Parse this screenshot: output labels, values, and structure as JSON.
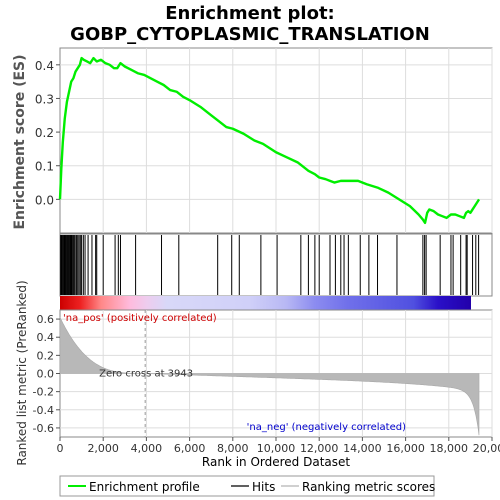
{
  "chart_data": {
    "type": "line",
    "title_line1": "Enrichment plot:",
    "title_line2": "GOBP_CYTOPLASMIC_TRANSLATION",
    "ylabel_top": "Enrichment score (ES)",
    "ylabel_bottom": "Ranked list metric (PreRanked)",
    "xlabel": "Rank in Ordered Dataset",
    "xlim": [
      0,
      20000
    ],
    "x_ticks": [
      "0",
      "2,000",
      "4,000",
      "6,000",
      "8,000",
      "10,000",
      "12,000",
      "14,000",
      "16,000",
      "18,000",
      "20,000"
    ],
    "x_tick_values": [
      0,
      2000,
      4000,
      6000,
      8000,
      10000,
      12000,
      14000,
      16000,
      18000,
      20000
    ],
    "es_ylim": [
      -0.1,
      0.45
    ],
    "es_ticks": [
      "0.0",
      "0.1",
      "0.2",
      "0.3",
      "0.4"
    ],
    "es_tick_values": [
      0.0,
      0.1,
      0.2,
      0.3,
      0.4
    ],
    "metric_ylim": [
      -0.7,
      0.7
    ],
    "metric_ticks": [
      "-0.6",
      "-0.4",
      "-0.2",
      "0.0",
      "0.2",
      "0.4",
      "0.6"
    ],
    "metric_tick_values": [
      -0.6,
      -0.4,
      -0.2,
      0.0,
      0.2,
      0.4,
      0.6
    ],
    "es_curve": {
      "x": [
        0,
        60,
        130,
        220,
        320,
        420,
        520,
        620,
        720,
        820,
        920,
        1000,
        1100,
        1250,
        1400,
        1550,
        1700,
        1900,
        2100,
        2300,
        2500,
        2650,
        2800,
        3000,
        3300,
        3600,
        3900,
        4200,
        4500,
        4800,
        5100,
        5400,
        5700,
        6000,
        6500,
        7000,
        7300,
        7700,
        8000,
        8500,
        9000,
        9400,
        10000,
        10500,
        11000,
        11200,
        11500,
        11800,
        12000,
        12300,
        12500,
        12700,
        13000,
        13300,
        13500,
        13800,
        14200,
        14700,
        15200,
        15700,
        16200,
        16600,
        16800,
        16900,
        17000,
        17100,
        17300,
        17500,
        17700,
        17900,
        18100,
        18300,
        18500,
        18700,
        18800,
        18900,
        19000,
        19100,
        19200,
        19300,
        19400
      ],
      "y": [
        0.0,
        0.09,
        0.17,
        0.24,
        0.29,
        0.32,
        0.35,
        0.36,
        0.38,
        0.39,
        0.4,
        0.42,
        0.415,
        0.41,
        0.405,
        0.42,
        0.41,
        0.415,
        0.405,
        0.4,
        0.39,
        0.39,
        0.405,
        0.395,
        0.385,
        0.375,
        0.37,
        0.36,
        0.35,
        0.34,
        0.325,
        0.32,
        0.305,
        0.295,
        0.275,
        0.25,
        0.235,
        0.215,
        0.21,
        0.195,
        0.175,
        0.165,
        0.14,
        0.125,
        0.11,
        0.1,
        0.085,
        0.075,
        0.065,
        0.06,
        0.055,
        0.05,
        0.055,
        0.055,
        0.055,
        0.055,
        0.045,
        0.035,
        0.02,
        0.0,
        -0.02,
        -0.045,
        -0.06,
        -0.07,
        -0.04,
        -0.03,
        -0.035,
        -0.045,
        -0.05,
        -0.055,
        -0.045,
        -0.045,
        -0.05,
        -0.055,
        -0.04,
        -0.035,
        -0.04,
        -0.03,
        -0.02,
        -0.01,
        0.0
      ]
    },
    "hits": [
      30,
      70,
      110,
      150,
      190,
      230,
      270,
      310,
      350,
      390,
      430,
      470,
      510,
      550,
      600,
      650,
      700,
      760,
      820,
      880,
      940,
      1000,
      1080,
      1160,
      1300,
      1480,
      1650,
      1700,
      2000,
      2550,
      2700,
      2800,
      3500,
      4700,
      5500,
      7300,
      7950,
      8300,
      9300,
      10050,
      11150,
      11500,
      11800,
      12000,
      12500,
      12750,
      13000,
      13150,
      13350,
      13900,
      14300,
      14700,
      15600,
      16800,
      16880,
      16950,
      17600,
      18100,
      18200,
      18550,
      18800,
      18850,
      19100,
      19250,
      19380
    ],
    "zero_cross_label": "Zero cross at 3943",
    "zero_cross": 3943,
    "pos_label": "'na_pos' (positively correlated)",
    "neg_label": "'na_neg' (negatively correlated)",
    "n_ranks": 19400,
    "metric_start": 0.62,
    "metric_end": -0.68,
    "colors": {
      "es_line": "#00ee00",
      "hits": "#000000",
      "metric_fill": "#b8b8b8",
      "pos_text": "#cc0000",
      "neg_text": "#0000cc"
    },
    "legend": [
      {
        "label": "Enrichment profile",
        "icon": "green-line"
      },
      {
        "label": "Hits",
        "icon": "black-line"
      },
      {
        "label": "Ranking metric scores",
        "icon": "gray-line"
      }
    ]
  }
}
